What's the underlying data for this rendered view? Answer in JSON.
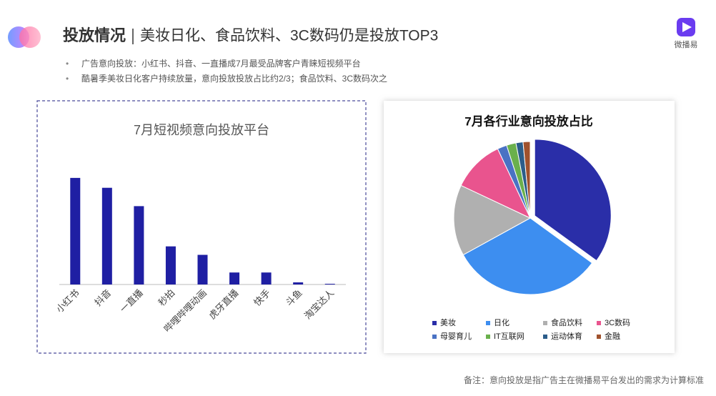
{
  "header": {
    "title": "投放情况",
    "subtitle": "美妆日化、食品饮料、3C数码仍是投放TOP3",
    "brand": "微播易"
  },
  "bullets": [
    "广告意向投放：小红书、抖音、一直播成7月最受品牌客户青睐短视频平台",
    "酷暑季美妆日化客户持续放量，意向投放投放占比约2/3；食品饮料、3C数码次之"
  ],
  "footnote": "备注：意向投放是指广告主在微播易平台发出的需求为计算标准",
  "chart_data": [
    {
      "type": "bar",
      "title": "7月短视频意向投放平台",
      "categories": [
        "小红书",
        "抖音",
        "一直播",
        "秒拍",
        "哔哩哔哩动画",
        "虎牙直播",
        "快手",
        "斗鱼",
        "淘宝达人"
      ],
      "values": [
        151,
        137,
        111,
        54,
        42,
        17,
        17,
        3,
        1
      ],
      "color": "#1f1fa3",
      "ylim": [
        0,
        160
      ]
    },
    {
      "type": "pie",
      "title": "7月各行业意向投放占比",
      "categories": [
        "美妆",
        "日化",
        "食品饮料",
        "3C数码",
        "母婴育儿",
        "IT互联网",
        "运动体育",
        "金融"
      ],
      "values": [
        35,
        32,
        15,
        11,
        2,
        2,
        1.5,
        1.5
      ],
      "colors": [
        "#2a2ea8",
        "#3d8ef0",
        "#b0b0b0",
        "#e9548e",
        "#4a72c4",
        "#6ab04c",
        "#2b5d8a",
        "#a0522d"
      ]
    }
  ]
}
